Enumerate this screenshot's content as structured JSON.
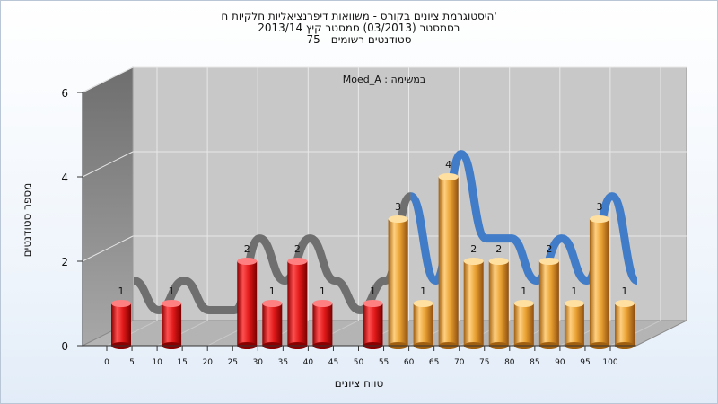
{
  "title_lines": [
    "היסטוגרמת ציונים בקורס - משוואות דיפרנציאליות חלקיות ח'",
    "בסמסטר  (03/2013)  סמסטר קיץ  2013/14",
    "סטודנטים רשומים - 75"
  ],
  "chart_data": {
    "type": "bar",
    "moed_label": "Moed_A : במשימה",
    "xlabel": "טווח ציונים",
    "ylabel": "מספר סטודנטים",
    "ylim": [
      0,
      6
    ],
    "y_ticks": [
      "0",
      "2",
      "4",
      "6"
    ],
    "x_ticks": [
      "0",
      "5",
      "10",
      "15",
      "20",
      "25",
      "30",
      "35",
      "40",
      "45",
      "50",
      "55",
      "60",
      "65",
      "70",
      "75",
      "80",
      "85",
      "90",
      "95",
      "100"
    ],
    "categories": [
      0,
      5,
      10,
      15,
      20,
      25,
      30,
      35,
      40,
      45,
      50,
      55,
      60,
      65,
      70,
      75,
      80,
      85,
      90,
      95,
      100
    ],
    "values": [
      1,
      0,
      1,
      0,
      0,
      2,
      1,
      2,
      1,
      0,
      1,
      3,
      1,
      4,
      2,
      2,
      1,
      2,
      1,
      3,
      1
    ],
    "pass_threshold": 55,
    "colors": {
      "fail_bar": "#e01818",
      "pass_bar": "#e8a030",
      "ribbon_fail": "#6a6a6a",
      "ribbon_pass": "#3a78c8",
      "back_wall": "#c8c8c8",
      "side_wall": "#8c8c8c",
      "floor": "#b4b4b4"
    },
    "grid": true
  }
}
